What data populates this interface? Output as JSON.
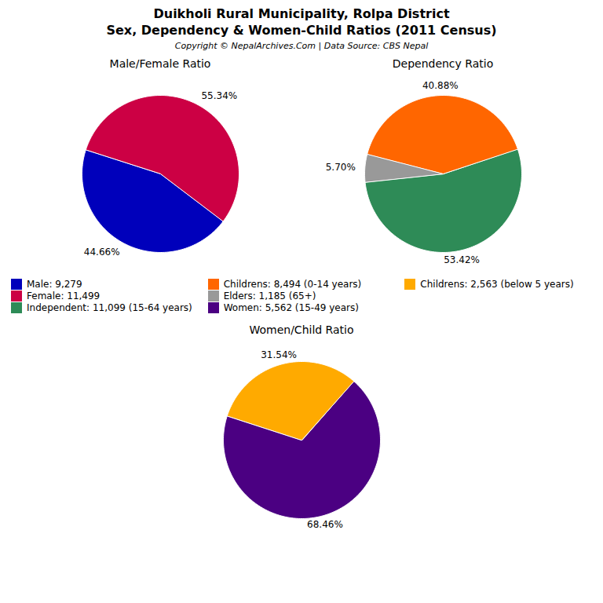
{
  "title": "Duikholi Rural Municipality, Rolpa District",
  "subtitle": "Sex, Dependency & Women-Child Ratios (2011 Census)",
  "annotations": [
    "Copyright © NepalArchives.Com | Data Source: CBS Nepal"
  ],
  "legend": "center",
  "chart_data": [
    {
      "type": "pie",
      "title": "Male/Female Ratio",
      "categories": [
        "Male: 9,279",
        "Female: 11,499"
      ],
      "values": [
        44.66,
        55.34
      ],
      "value_labels": [
        "44.66%",
        "55.34%"
      ],
      "colors": [
        "#0000bb",
        "#cc0044"
      ],
      "data_labels": true
    },
    {
      "type": "pie",
      "title": "Dependency Ratio",
      "categories": [
        "Independent: 11,099 (15-64 years)",
        "Childrens: 8,494 (0-14 years)",
        "Elders: 1,185 (65+)"
      ],
      "values": [
        53.42,
        40.88,
        5.7
      ],
      "value_labels": [
        "53.42%",
        "40.88%",
        "5.70%"
      ],
      "colors": [
        "#2e8b57",
        "#ff6600",
        "#999999"
      ],
      "data_labels": true
    },
    {
      "type": "pie",
      "title": "Women/Child Ratio",
      "categories": [
        "Women: 5,562 (15-49 years)",
        "Childrens: 2,563 (below 5 years)"
      ],
      "values": [
        68.46,
        31.54
      ],
      "value_labels": [
        "68.46%",
        "31.54%"
      ],
      "colors": [
        "#4b0082",
        "#ffaa00"
      ],
      "data_labels": true
    }
  ]
}
